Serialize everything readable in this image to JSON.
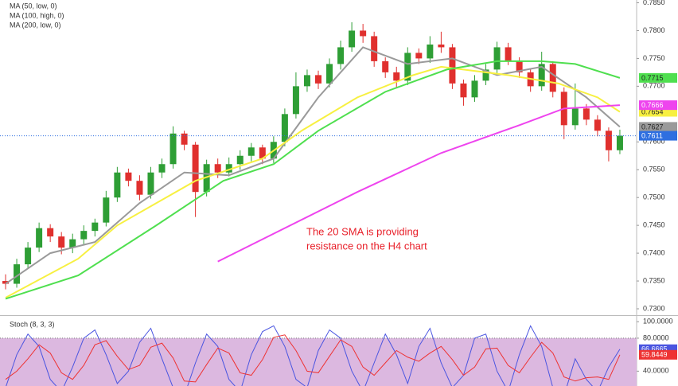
{
  "chart_data": [
    {
      "type": "candlestick",
      "open": [
        0.735,
        0.7345,
        0.738,
        0.741,
        0.7445,
        0.743,
        0.741,
        0.7425,
        0.744,
        0.7455,
        0.75,
        0.7545,
        0.753,
        0.7505,
        0.7545,
        0.756,
        0.7615,
        0.7595,
        0.751,
        0.756,
        0.7545,
        0.756,
        0.7575,
        0.759,
        0.757,
        0.76,
        0.765,
        0.77,
        0.772,
        0.7705,
        0.774,
        0.777,
        0.78,
        0.779,
        0.7745,
        0.7725,
        0.771,
        0.776,
        0.775,
        0.7775,
        0.777,
        0.7705,
        0.768,
        0.771,
        0.773,
        0.777,
        0.7745,
        0.7725,
        0.77,
        0.774,
        0.769,
        0.763,
        0.766,
        0.764,
        0.762,
        0.7585
      ],
      "high": [
        0.7362,
        0.739,
        0.742,
        0.7455,
        0.7452,
        0.7438,
        0.7435,
        0.745,
        0.7462,
        0.7512,
        0.7555,
        0.7552,
        0.754,
        0.7555,
        0.757,
        0.7628,
        0.762,
        0.76,
        0.7568,
        0.757,
        0.7572,
        0.7585,
        0.7598,
        0.7595,
        0.761,
        0.766,
        0.7725,
        0.773,
        0.7728,
        0.775,
        0.7782,
        0.7815,
        0.7812,
        0.7798,
        0.7752,
        0.7735,
        0.777,
        0.7768,
        0.779,
        0.7798,
        0.7776,
        0.7712,
        0.772,
        0.774,
        0.778,
        0.7778,
        0.7752,
        0.7732,
        0.7762,
        0.7745,
        0.7698,
        0.7705,
        0.7668,
        0.7648,
        0.7626,
        0.7622
      ],
      "low": [
        0.7335,
        0.7338,
        0.7372,
        0.7402,
        0.742,
        0.7398,
        0.74,
        0.7415,
        0.743,
        0.7448,
        0.7492,
        0.752,
        0.7495,
        0.7498,
        0.7535,
        0.7552,
        0.7585,
        0.7465,
        0.7502,
        0.7535,
        0.7538,
        0.755,
        0.7565,
        0.756,
        0.7562,
        0.7592,
        0.7642,
        0.769,
        0.7695,
        0.7698,
        0.773,
        0.7762,
        0.7778,
        0.7735,
        0.7715,
        0.7698,
        0.7702,
        0.774,
        0.7742,
        0.776,
        0.7695,
        0.7665,
        0.7672,
        0.7702,
        0.7722,
        0.7738,
        0.7715,
        0.769,
        0.7692,
        0.768,
        0.7605,
        0.7622,
        0.763,
        0.761,
        0.7565,
        0.7578
      ],
      "close": [
        0.7345,
        0.738,
        0.741,
        0.7445,
        0.743,
        0.741,
        0.7425,
        0.744,
        0.7455,
        0.75,
        0.7545,
        0.753,
        0.7505,
        0.7545,
        0.756,
        0.7615,
        0.7595,
        0.751,
        0.756,
        0.7545,
        0.756,
        0.7575,
        0.759,
        0.757,
        0.76,
        0.765,
        0.77,
        0.772,
        0.7705,
        0.774,
        0.777,
        0.78,
        0.779,
        0.7745,
        0.7725,
        0.771,
        0.776,
        0.775,
        0.7775,
        0.777,
        0.7705,
        0.768,
        0.771,
        0.773,
        0.777,
        0.7745,
        0.7725,
        0.77,
        0.774,
        0.769,
        0.763,
        0.766,
        0.764,
        0.762,
        0.7585,
        0.7611
      ],
      "up_color": "#2e9e35",
      "down_color": "#e0302e",
      "price_line_color": "#2f6fe0",
      "xlim": [
        -0.5,
        56.5
      ],
      "ylim": [
        0.729,
        0.7855
      ],
      "yticks": [
        {
          "value": 0.73,
          "label": "0.7300"
        },
        {
          "value": 0.735,
          "label": "0.7350"
        },
        {
          "value": 0.74,
          "label": "0.7400"
        },
        {
          "value": 0.745,
          "label": "0.7450"
        },
        {
          "value": 0.75,
          "label": "0.7500"
        },
        {
          "value": 0.755,
          "label": "0.7550"
        },
        {
          "value": 0.76,
          "label": "0.7600"
        },
        {
          "value": 0.77,
          "label": "0.7700"
        },
        {
          "value": 0.775,
          "label": "0.7750"
        },
        {
          "value": 0.78,
          "label": "0.7800"
        },
        {
          "value": 0.785,
          "label": "0.7850"
        }
      ],
      "series": [
        {
          "color": "#9a9a9a",
          "x": [
            0,
            4,
            8,
            12,
            16,
            20,
            24,
            28,
            32,
            36,
            40,
            44,
            48,
            52,
            55
          ],
          "values": [
            0.7345,
            0.74,
            0.742,
            0.749,
            0.7545,
            0.754,
            0.757,
            0.768,
            0.777,
            0.774,
            0.775,
            0.772,
            0.7735,
            0.768,
            0.7627
          ]
        },
        {
          "name": "MA (50, low, 0)",
          "color": "#f7f041",
          "x": [
            0,
            6.5,
            10,
            17,
            23,
            26.5,
            31.5,
            36.5,
            39,
            45,
            49.5,
            53,
            55
          ],
          "values": [
            0.732,
            0.739,
            0.745,
            0.753,
            0.757,
            0.762,
            0.768,
            0.772,
            0.7735,
            0.772,
            0.7705,
            0.768,
            0.7654
          ]
        },
        {
          "name": "MA (100, high, 0)",
          "color": "#4fdf4f",
          "x": [
            0,
            6.5,
            13.5,
            19.5,
            24,
            28,
            34,
            39.5,
            44,
            48,
            51,
            55
          ],
          "values": [
            0.7318,
            0.736,
            0.745,
            0.753,
            0.756,
            0.762,
            0.769,
            0.773,
            0.7745,
            0.7745,
            0.774,
            0.7715
          ]
        },
        {
          "name": "MA (200, low, 0)",
          "color": "#ee44ee",
          "x": [
            19,
            24.5,
            31.5,
            39,
            46,
            50,
            55
          ],
          "values": [
            0.7385,
            0.744,
            0.751,
            0.758,
            0.763,
            0.766,
            0.7666
          ]
        }
      ],
      "annotation": {
        "lines": [
          "The 20 SMA is providing",
          "resistance on the H4 chart"
        ],
        "color": "#e8202a"
      }
    },
    {
      "type": "line",
      "title": "Stoch (8, 3, 3)",
      "xlim": [
        -0.5,
        56.5
      ],
      "ylim": [
        22,
        106
      ],
      "yticks": [
        {
          "value": 100,
          "label": "100.0000"
        },
        {
          "value": 80,
          "label": "80.0000"
        },
        {
          "value": 40,
          "label": "40.0000"
        }
      ],
      "band": [
        20,
        80
      ],
      "band_color": "#dcb8e0",
      "series": [
        {
          "color": "#4a55e0",
          "values": [
            20,
            60,
            85,
            70,
            30,
            15,
            45,
            80,
            90,
            60,
            25,
            40,
            75,
            92,
            55,
            20,
            10,
            50,
            85,
            70,
            30,
            15,
            60,
            88,
            95,
            70,
            30,
            20,
            65,
            90,
            80,
            40,
            15,
            50,
            85,
            60,
            25,
            70,
            92,
            50,
            20,
            35,
            80,
            85,
            40,
            15,
            60,
            95,
            70,
            20,
            10,
            55,
            30,
            15,
            45,
            66.6665
          ]
        },
        {
          "color": "#ee3333",
          "values": [
            30,
            40,
            55,
            72,
            62,
            38,
            30,
            47,
            72,
            77,
            58,
            42,
            47,
            69,
            74,
            56,
            28,
            27,
            48,
            68,
            62,
            38,
            35,
            54,
            81,
            84,
            65,
            40,
            38,
            58,
            78,
            70,
            45,
            35,
            50,
            65,
            57,
            52,
            62,
            70,
            54,
            35,
            45,
            67,
            68,
            47,
            38,
            57,
            75,
            62,
            33,
            28,
            32,
            33,
            30,
            59.8449
          ]
        }
      ]
    }
  ]
}
